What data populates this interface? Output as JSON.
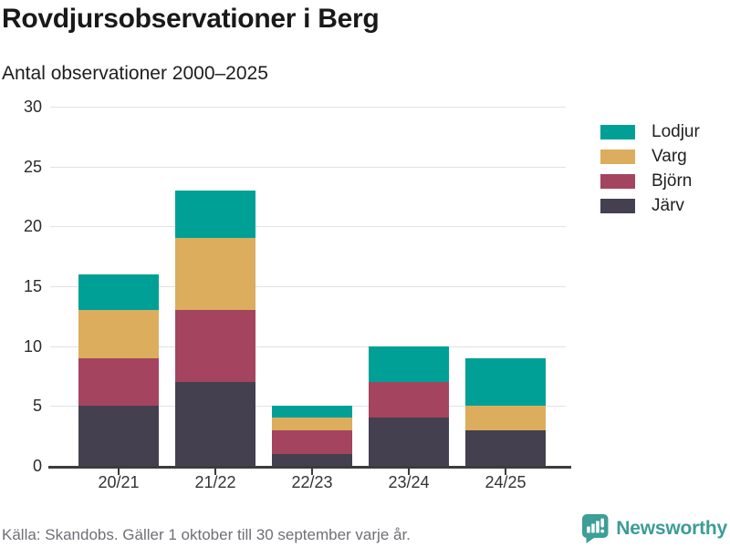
{
  "footer": {
    "source_note": "Källa: Skandobs. Gäller 1 oktober till 30 september varje år."
  },
  "branding": {
    "name": "Newsworthy",
    "logo_icon": "bar-chart-speech-bubble",
    "color": "#3d9c95"
  },
  "chart_data": {
    "type": "bar",
    "stacked": true,
    "title": "Rovdjursobservationer i Berg",
    "subtitle": "Antal observationer 2000–2025",
    "categories": [
      "20/21",
      "21/22",
      "22/23",
      "23/24",
      "24/25"
    ],
    "series": [
      {
        "name": "Lodjur",
        "color": "#00a096",
        "values": [
          3,
          4,
          1,
          3,
          4
        ]
      },
      {
        "name": "Varg",
        "color": "#dbad5c",
        "values": [
          4,
          6,
          1,
          0,
          2
        ]
      },
      {
        "name": "Björn",
        "color": "#a4445f",
        "values": [
          4,
          6,
          2,
          3,
          0
        ]
      },
      {
        "name": "Järv",
        "color": "#444050",
        "values": [
          5,
          7,
          1,
          4,
          3
        ]
      }
    ],
    "ylim": [
      0,
      30
    ],
    "yticks": [
      0,
      5,
      10,
      15,
      20,
      25,
      30
    ],
    "grid": true,
    "legend_position": "right",
    "grid_color": "#e2e2e2",
    "axis_color": "#3c3c3c"
  }
}
